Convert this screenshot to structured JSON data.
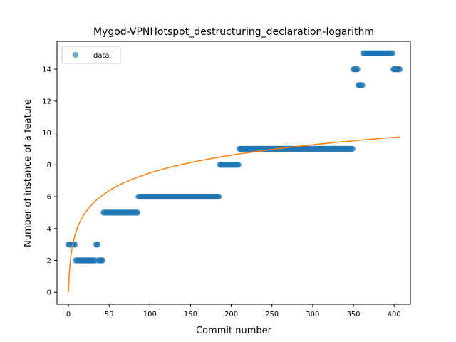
{
  "chart_data": {
    "type": "scatter",
    "title": "Mygod-VPNHotspot_destructuring_declaration-logarithm",
    "xlabel": "Commit number",
    "ylabel": "Number of instance of a feature",
    "xlim": [
      -14,
      420
    ],
    "ylim": [
      -0.75,
      15.75
    ],
    "xticks": [
      0,
      50,
      100,
      150,
      200,
      250,
      300,
      350,
      400
    ],
    "yticks": [
      0,
      2,
      4,
      6,
      8,
      10,
      12,
      14
    ],
    "grid": false,
    "legend": {
      "placement": "top-left",
      "entries": [
        "data"
      ]
    },
    "colors": {
      "data": "#1f77b4",
      "fit": "#ff7f0e"
    },
    "series": [
      {
        "name": "data",
        "kind": "scatter",
        "segments": [
          {
            "x_start": 0,
            "x_end": 8,
            "y": 3
          },
          {
            "x_start": 9,
            "x_end": 33,
            "y": 2
          },
          {
            "x_start": 34,
            "x_end": 36,
            "y": 3
          },
          {
            "x_start": 37,
            "x_end": 42,
            "y": 2
          },
          {
            "x_start": 43,
            "x_end": 85,
            "y": 5
          },
          {
            "x_start": 86,
            "x_end": 185,
            "y": 6
          },
          {
            "x_start": 186,
            "x_end": 209,
            "y": 8
          },
          {
            "x_start": 210,
            "x_end": 349,
            "y": 9
          },
          {
            "x_start": 350,
            "x_end": 355,
            "y": 14
          },
          {
            "x_start": 356,
            "x_end": 361,
            "y": 13
          },
          {
            "x_start": 362,
            "x_end": 398,
            "y": 15
          },
          {
            "x_start": 399,
            "x_end": 407,
            "y": 14
          }
        ]
      },
      {
        "kind": "line",
        "model": "logarithmic",
        "x_range": [
          0,
          407
        ],
        "y_at_x0": 0,
        "y_at_x_end": 9.75
      }
    ]
  }
}
